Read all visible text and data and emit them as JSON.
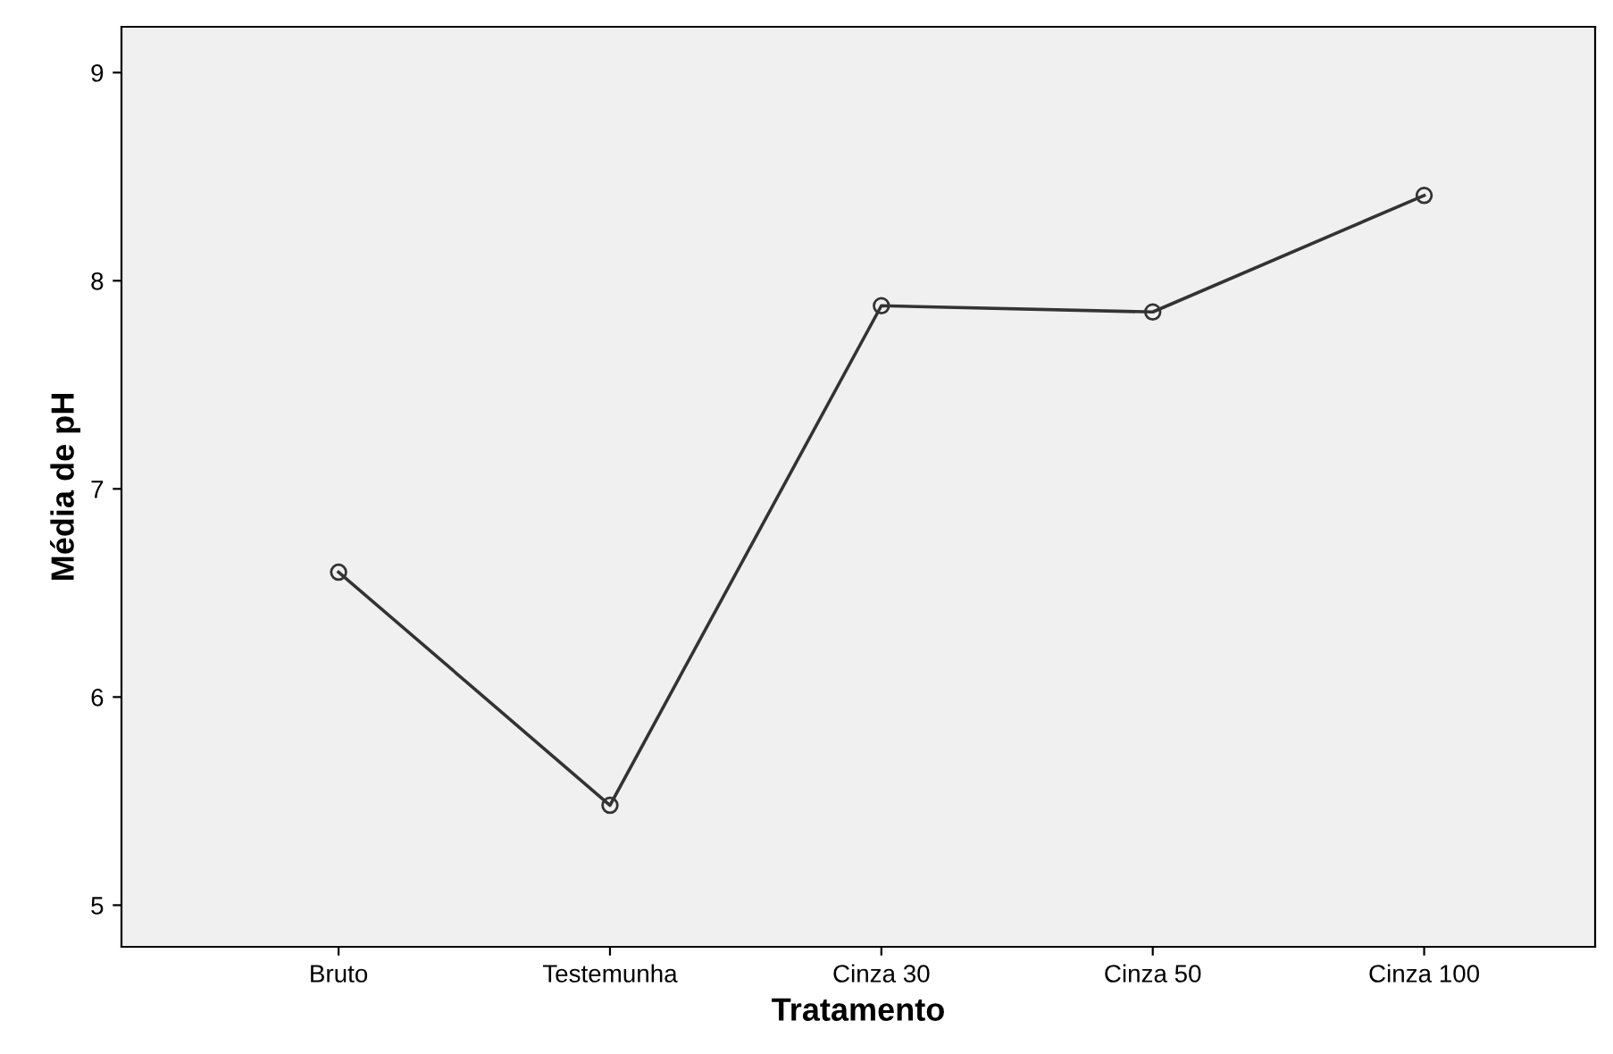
{
  "chart_data": {
    "type": "line",
    "xlabel": "Tratamento",
    "ylabel": "Média de pH",
    "categories": [
      "Bruto",
      "Testemunha",
      "Cinza 30",
      "Cinza 50",
      "Cinza 100"
    ],
    "series": [
      {
        "color": "#333333",
        "values": [
          6.6,
          5.48,
          7.88,
          7.85,
          8.41
        ]
      }
    ],
    "ylim": [
      4.8,
      9.22
    ],
    "yticks": [
      5,
      6,
      7,
      8,
      9
    ],
    "grid": false,
    "legend": false,
    "marker": "circle",
    "line_style": "solid"
  }
}
